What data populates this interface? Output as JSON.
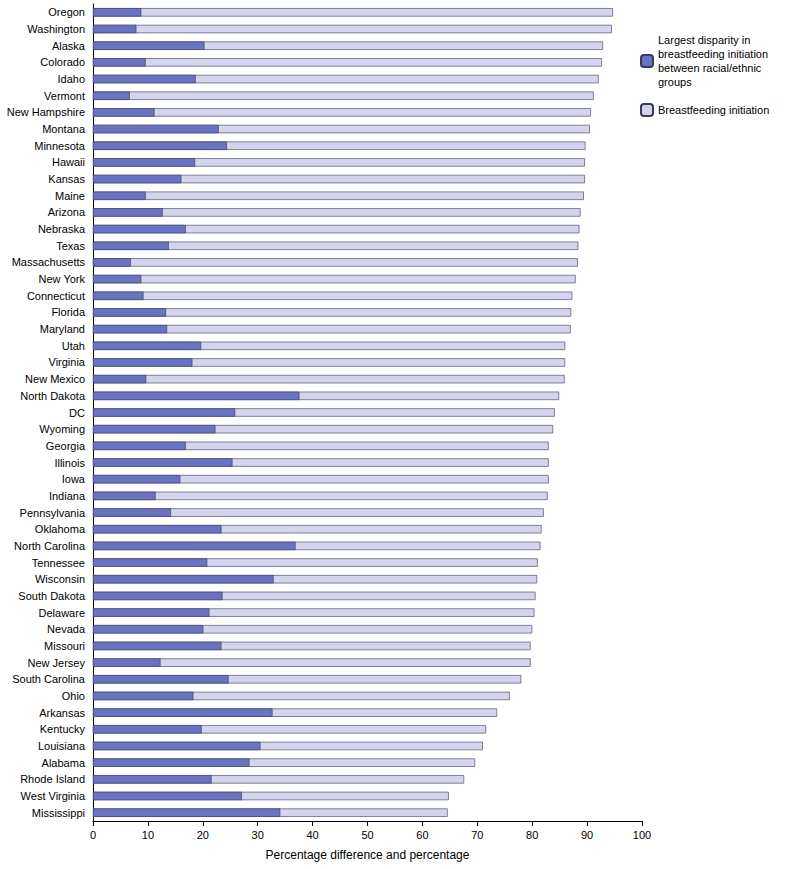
{
  "chart_data": {
    "type": "bar",
    "orientation": "horizontal",
    "stacked": false,
    "grid": false,
    "legend": "top-right",
    "x_label": "Percentage difference and percentage",
    "xlim": [
      0,
      100
    ],
    "xticks": [
      0,
      10,
      20,
      30,
      40,
      50,
      60,
      70,
      80,
      90,
      100
    ],
    "categories": [
      "Oregon",
      "Washington",
      "Alaska",
      "Colorado",
      "Idaho",
      "Vermont",
      "New Hampshire",
      "Montana",
      "Minnesota",
      "Hawaii",
      "Kansas",
      "Maine",
      "Arizona",
      "Nebraska",
      "Texas",
      "Massachusetts",
      "New York",
      "Connecticut",
      "Florida",
      "Maryland",
      "Utah",
      "Virginia",
      "New Mexico",
      "North Dakota",
      "DC",
      "Wyoming",
      "Georgia",
      "Illinois",
      "Iowa",
      "Indiana",
      "Pennsylvania",
      "Oklahoma",
      "North Carolina",
      "Tennessee",
      "Wisconsin",
      "South Dakota",
      "Delaware",
      "Nevada",
      "Missouri",
      "New Jersey",
      "South Carolina",
      "Ohio",
      "Arkansas",
      "Kentucky",
      "Louisiana",
      "Alabama",
      "Rhode Island",
      "West Virginia",
      "Mississippi"
    ],
    "series": [
      {
        "name": "Largest disparity in breastfeeding initiation between racial/ethnic groups",
        "color": "#6a72c2",
        "values": [
          8.8,
          7.9,
          20.3,
          9.6,
          18.7,
          6.7,
          11.2,
          22.9,
          24.4,
          18.6,
          16.1,
          9.6,
          12.7,
          16.9,
          13.8,
          6.9,
          8.8,
          9.2,
          13.3,
          13.5,
          19.7,
          18.1,
          9.7,
          37.6,
          25.9,
          22.3,
          16.9,
          25.4,
          15.9,
          11.4,
          14.2,
          23.4,
          36.9,
          20.8,
          32.9,
          23.6,
          21.2,
          20.1,
          23.4,
          12.3,
          24.7,
          18.3,
          32.7,
          19.8,
          30.5,
          28.5,
          21.6,
          27.1,
          34.1
        ]
      },
      {
        "name": "Breastfeeding initiation",
        "color": "#d4d4ee",
        "values": [
          94.7,
          94.5,
          92.9,
          92.7,
          92.1,
          91.2,
          90.7,
          90.5,
          89.7,
          89.6,
          89.6,
          89.4,
          88.8,
          88.6,
          88.4,
          88.3,
          87.9,
          87.3,
          87.1,
          87.0,
          86.0,
          86.0,
          85.9,
          84.9,
          84.1,
          83.8,
          83.0,
          83.0,
          83.0,
          82.8,
          82.1,
          81.7,
          81.5,
          81.0,
          80.9,
          80.6,
          80.4,
          80.0,
          79.7,
          79.7,
          78.0,
          75.9,
          73.6,
          71.6,
          71.0,
          69.6,
          67.6,
          64.8,
          64.6
        ]
      }
    ]
  }
}
